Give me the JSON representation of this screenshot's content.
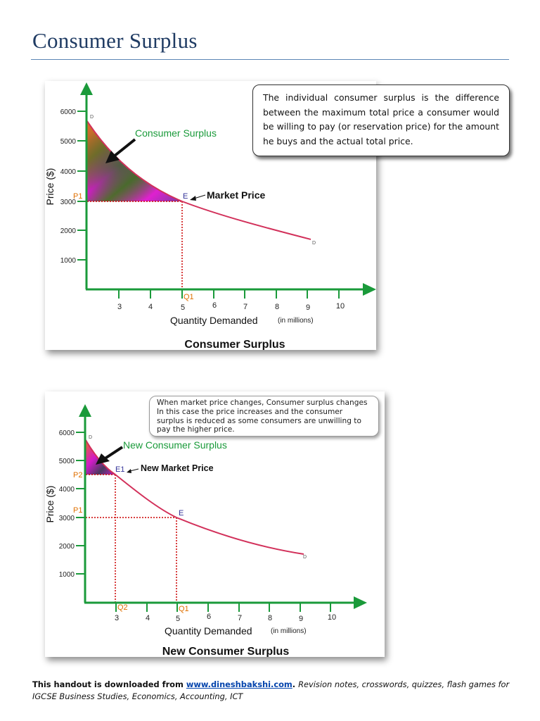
{
  "title": "Consumer Surplus",
  "colors": {
    "axis": "#1a9a3a",
    "demand_curve": "#d2305a",
    "guide_lines": "#cc0000",
    "point_label": "#333399",
    "price_label": "#e07000",
    "surplus_label": "#1a9a3a"
  },
  "figure1": {
    "callout": "The individual consumer surplus is the difference between the maximum total price a consumer would be willing to pay (or reservation price) for the amount he buys and the actual total price.",
    "caption": "Consumer Surplus",
    "surplus_label": "Consumer Surplus",
    "market_price_label": "Market Price",
    "point_label": "E",
    "price_marker": "P1",
    "quantity_marker": "Q1",
    "curve_top_label": "D",
    "curve_end_label": "D"
  },
  "figure2": {
    "callout": "When market price changes, Consumer surplus changes In this case the price increases and the consumer surplus is reduced as some consumers are unwilling to pay the higher price.",
    "caption": "New Consumer Surplus",
    "surplus_label": "New Consumer Surplus",
    "market_price_label": "New Market Price",
    "new_point_label": "E1",
    "old_point_label": "E",
    "new_price_marker": "P2",
    "old_price_marker": "P1",
    "new_quantity_marker": "Q2",
    "old_quantity_marker": "Q1",
    "curve_top_label": "D",
    "curve_end_label": "D"
  },
  "axes": {
    "ylabel": "Price ($)",
    "xlabel": "Quantity Demanded",
    "xlabel_unit": "(in millions)",
    "yticks": [
      "6000",
      "5000",
      "4000",
      "3000",
      "2000",
      "1000"
    ],
    "xticks": [
      "3",
      "4",
      "5",
      "6",
      "7",
      "8",
      "9",
      "10"
    ]
  },
  "footer": {
    "prefix": "This handout is downloaded from ",
    "link": "www.dineshbakshi.com",
    "suffix": "Revision notes, crosswords, quizzes, flash games for IGCSE Business Studies, Economics, Accounting, ICT"
  }
}
